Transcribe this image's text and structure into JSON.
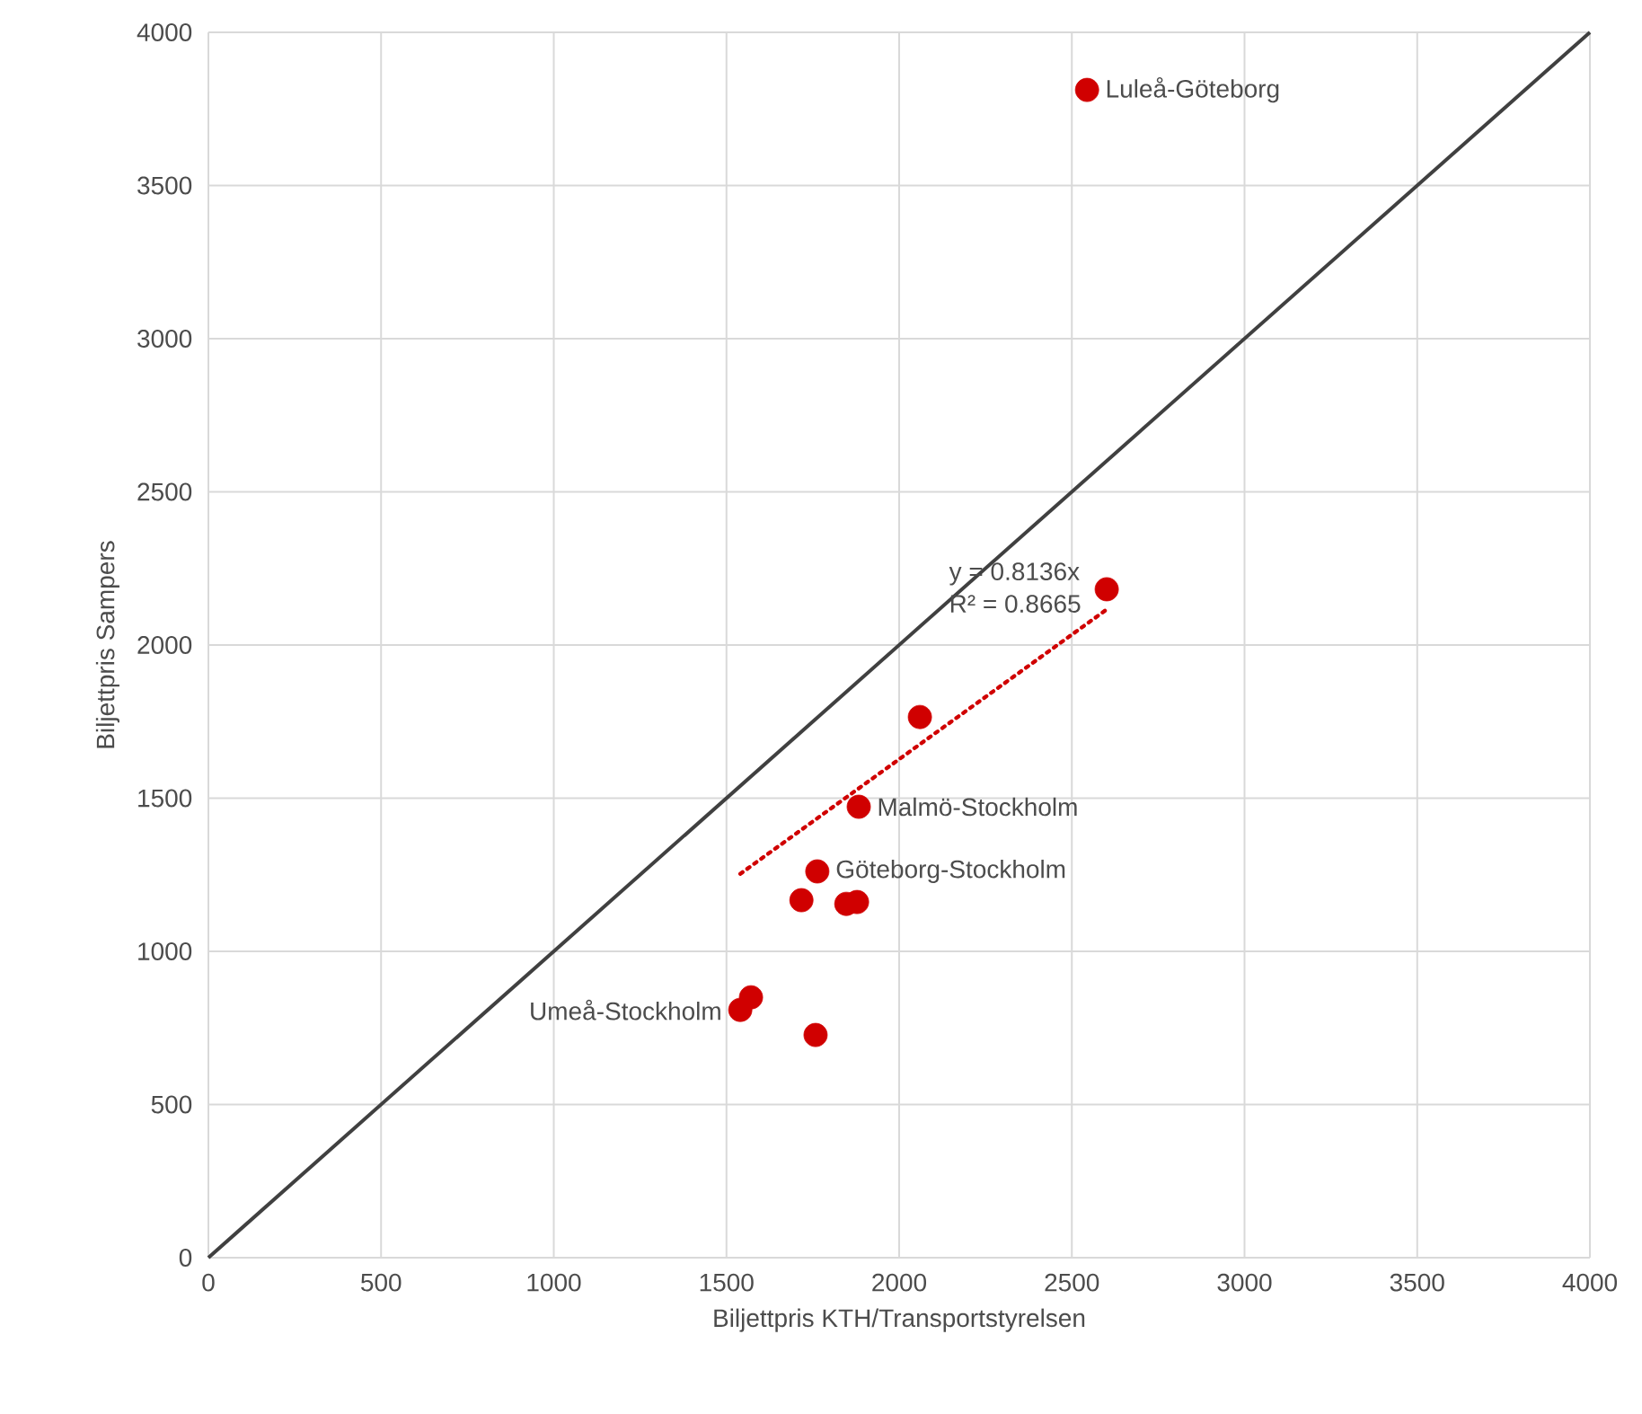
{
  "chart_data": {
    "type": "scatter",
    "xlabel": "Biljettpris KTH/Transportstyrelsen",
    "ylabel": "Biljettpris Sampers",
    "xlim": [
      0,
      4000
    ],
    "ylim": [
      0,
      4000
    ],
    "xticks": [
      0,
      500,
      1000,
      1500,
      2000,
      2500,
      3000,
      3500,
      4000
    ],
    "yticks": [
      0,
      500,
      1000,
      1500,
      2000,
      2500,
      3000,
      3500,
      4000
    ],
    "grid": true,
    "series": [
      {
        "color": "#d00000",
        "marker": "circle",
        "x": [
          2544,
          2601,
          2060,
          1883,
          1763,
          1717,
          1847,
          1878,
          1571,
          1540,
          1758
        ],
        "values": [
          3812,
          2182,
          1765,
          1472,
          1261,
          1167,
          1155,
          1161,
          850,
          809,
          727
        ]
      },
      {
        "type": "line",
        "color": "#404040",
        "line_style": "solid",
        "x": [
          0,
          4000
        ],
        "values": [
          0,
          4000
        ]
      },
      {
        "type": "line",
        "color": "#d00000",
        "line_style": "dotted",
        "x": [
          1540,
          2601
        ],
        "values": [
          1253,
          2116
        ]
      }
    ],
    "annotations": [
      {
        "text": "Luleå-Göteborg",
        "x": 2544,
        "y": 3812
      },
      {
        "text": "Malmö-Stockholm",
        "x": 1883,
        "y": 1472
      },
      {
        "text": "Göteborg-Stockholm",
        "x": 1763,
        "y": 1261
      },
      {
        "text": "Umeå-Stockholm",
        "x": 1540,
        "y": 809
      },
      "y = 0.8136x",
      "R² = 0.8665"
    ]
  }
}
